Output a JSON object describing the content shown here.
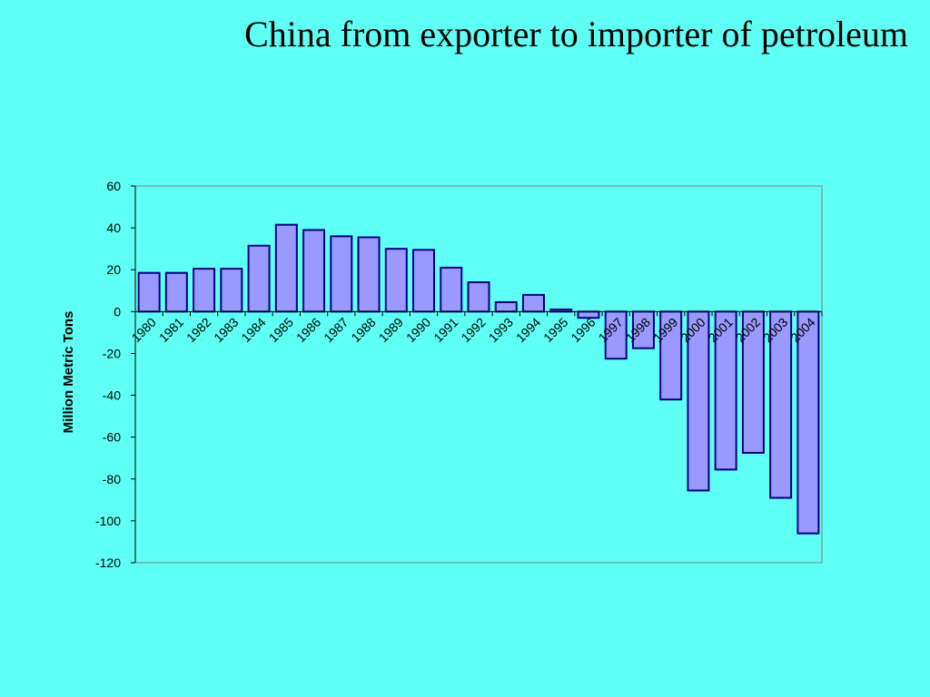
{
  "slide": {
    "title": "China from exporter to importer of petroleum"
  },
  "chart_data": {
    "type": "bar",
    "title": "",
    "xlabel": "",
    "ylabel": "Million Metric Tons",
    "ylim": [
      -120,
      60
    ],
    "yticks": [
      60,
      40,
      20,
      0,
      -20,
      -40,
      -60,
      -80,
      -100,
      -120
    ],
    "categories": [
      "1980",
      "1981",
      "1982",
      "1983",
      "1984",
      "1985",
      "1986",
      "1987",
      "1988",
      "1989",
      "1990",
      "1991",
      "1992",
      "1993",
      "1994",
      "1995",
      "1996",
      "1997",
      "1998",
      "1999",
      "2000",
      "2001",
      "2002",
      "2003",
      "2004"
    ],
    "series": [
      {
        "values": [
          18.5,
          18.5,
          20.5,
          20.5,
          31.5,
          41.5,
          39,
          36,
          35.5,
          30,
          29.5,
          21,
          14,
          4.5,
          8,
          1,
          -3,
          -22.5,
          -17.5,
          -42,
          -85.5,
          -75.5,
          -67.5,
          -89,
          -106
        ]
      }
    ],
    "grid": false,
    "legend": "none",
    "bar_fill": "#9999ff",
    "bar_stroke": "#000080",
    "plot_border": "#808080"
  }
}
